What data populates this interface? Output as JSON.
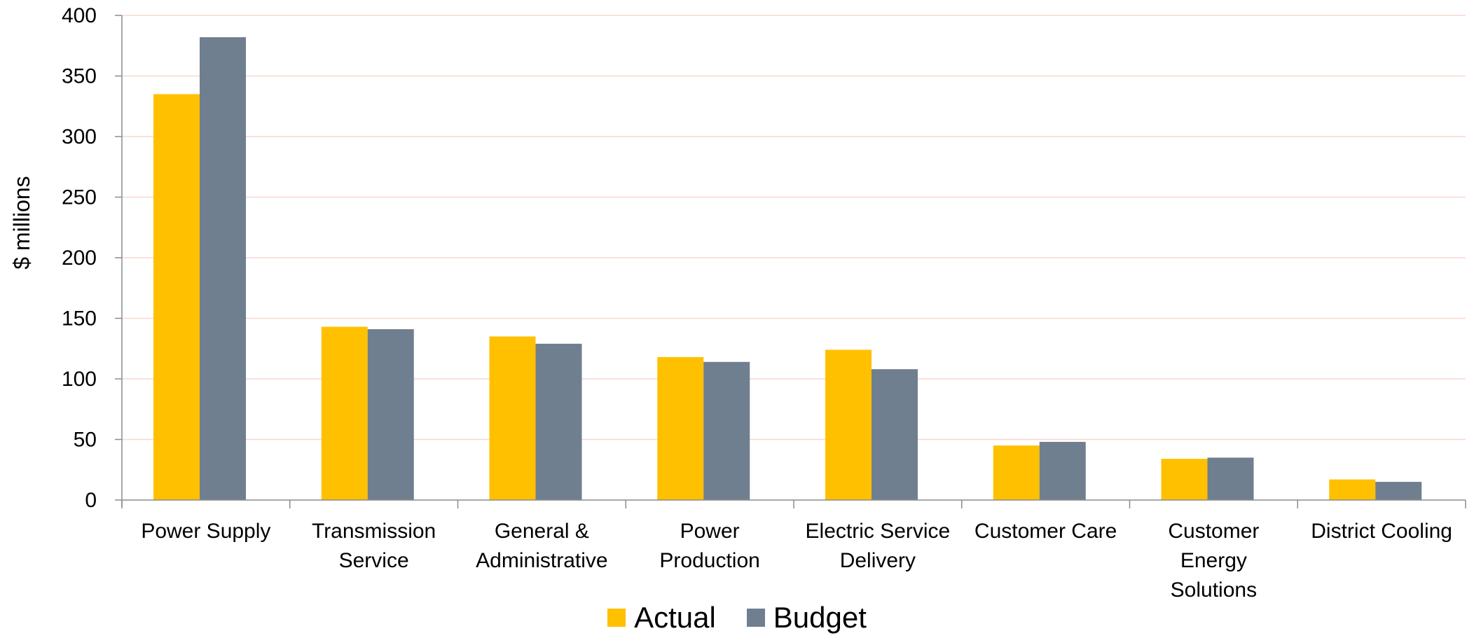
{
  "chart_data": {
    "type": "bar",
    "title": "",
    "xlabel": "",
    "ylabel": "$ millions",
    "ylim": [
      0,
      400
    ],
    "yticks": [
      0,
      50,
      100,
      150,
      200,
      250,
      300,
      350,
      400
    ],
    "grid": true,
    "legend_position": "bottom",
    "categories": [
      [
        "Power Supply"
      ],
      [
        "Transmission",
        "Service"
      ],
      [
        "General &",
        "Administrative"
      ],
      [
        "Power",
        "Production"
      ],
      [
        "Electric Service",
        "Delivery"
      ],
      [
        "Customer Care"
      ],
      [
        "Customer",
        "Energy",
        "Solutions"
      ],
      [
        "District Cooling"
      ]
    ],
    "series": [
      {
        "name": "Actual",
        "color": "#FFC000",
        "values": [
          335,
          143,
          135,
          118,
          124,
          45,
          34,
          17
        ]
      },
      {
        "name": "Budget",
        "color": "#6F7F8F",
        "values": [
          382,
          141,
          129,
          114,
          108,
          48,
          35,
          15
        ]
      }
    ],
    "gridline_color": "#FAD7CF",
    "axis_color": "#8C8C8C"
  }
}
